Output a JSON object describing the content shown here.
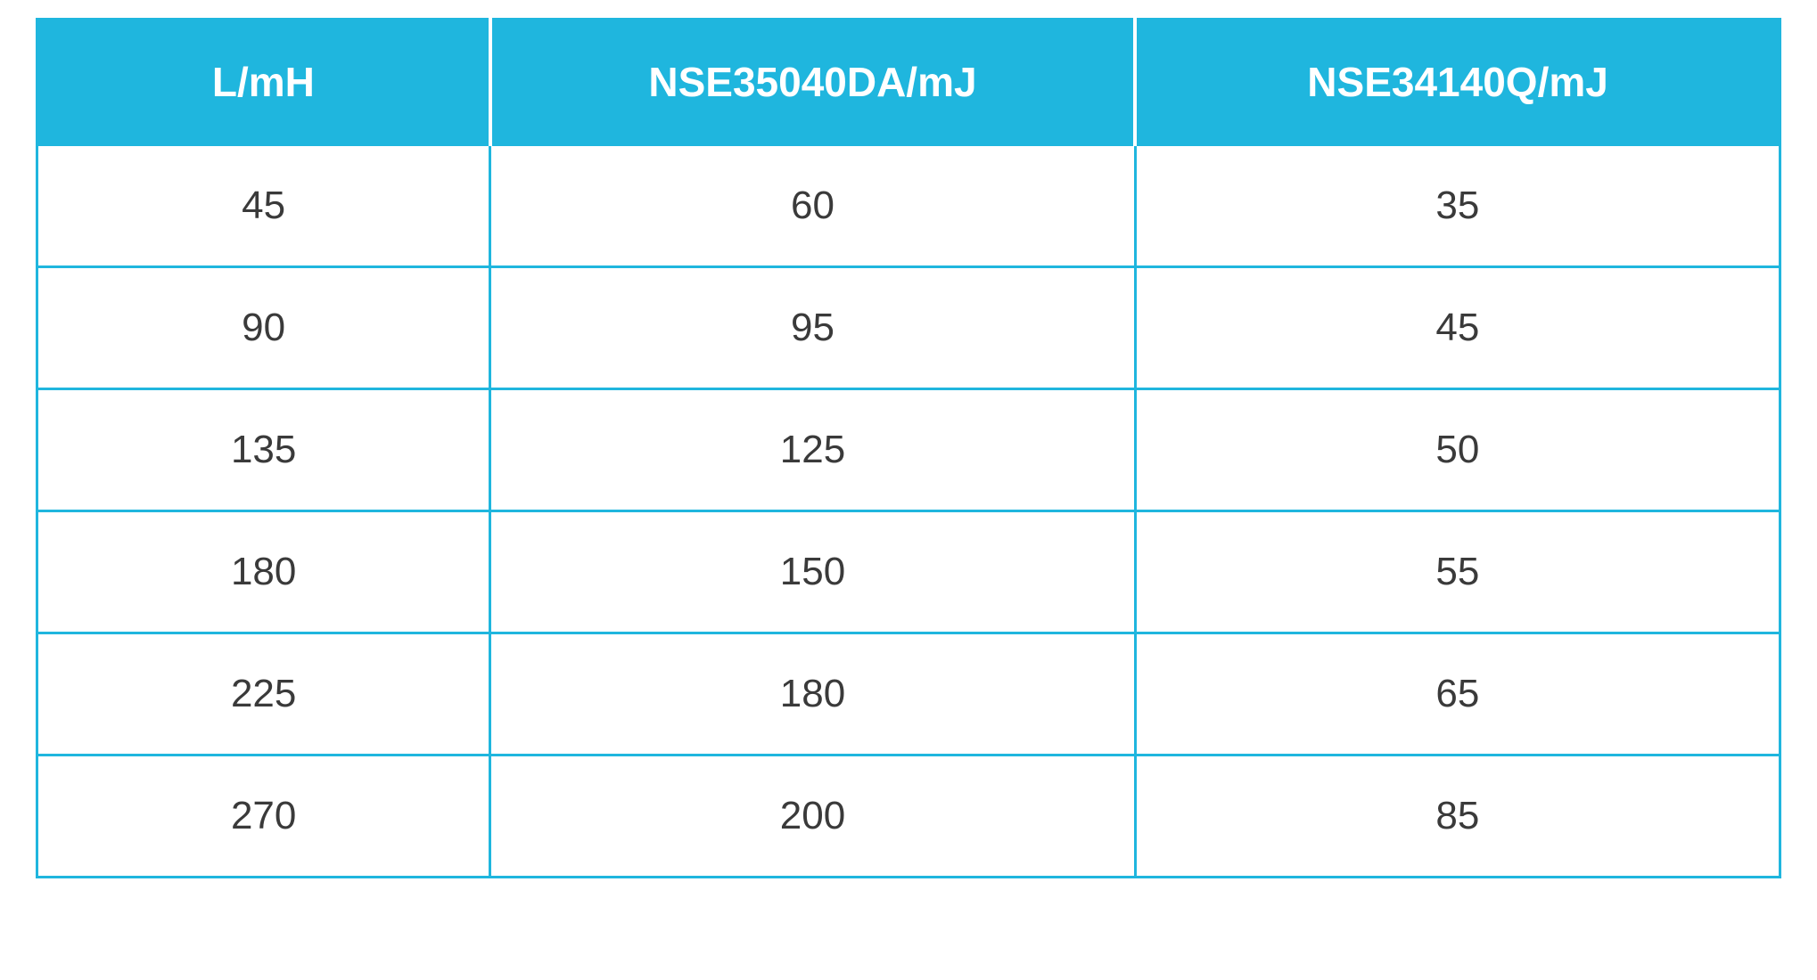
{
  "table": {
    "type": "table",
    "header_bg": "#1fb6de",
    "header_fg": "#ffffff",
    "header_fontsize": 46,
    "header_fontweight": 700,
    "cell_fg": "#3a3a3a",
    "cell_fontsize": 44,
    "cell_fontweight": 400,
    "border_color": "#1fb6de",
    "border_width": 3,
    "header_divider_color": "#ffffff",
    "background_color": "#ffffff",
    "column_widths_pct": [
      26,
      37,
      37
    ],
    "columns": [
      "L/mH",
      "NSE35040DA/mJ",
      "NSE34140Q/mJ"
    ],
    "rows": [
      [
        "45",
        "60",
        "35"
      ],
      [
        "90",
        "95",
        "45"
      ],
      [
        "135",
        "125",
        "50"
      ],
      [
        "180",
        "150",
        "55"
      ],
      [
        "225",
        "180",
        "65"
      ],
      [
        "270",
        "200",
        "85"
      ]
    ]
  }
}
